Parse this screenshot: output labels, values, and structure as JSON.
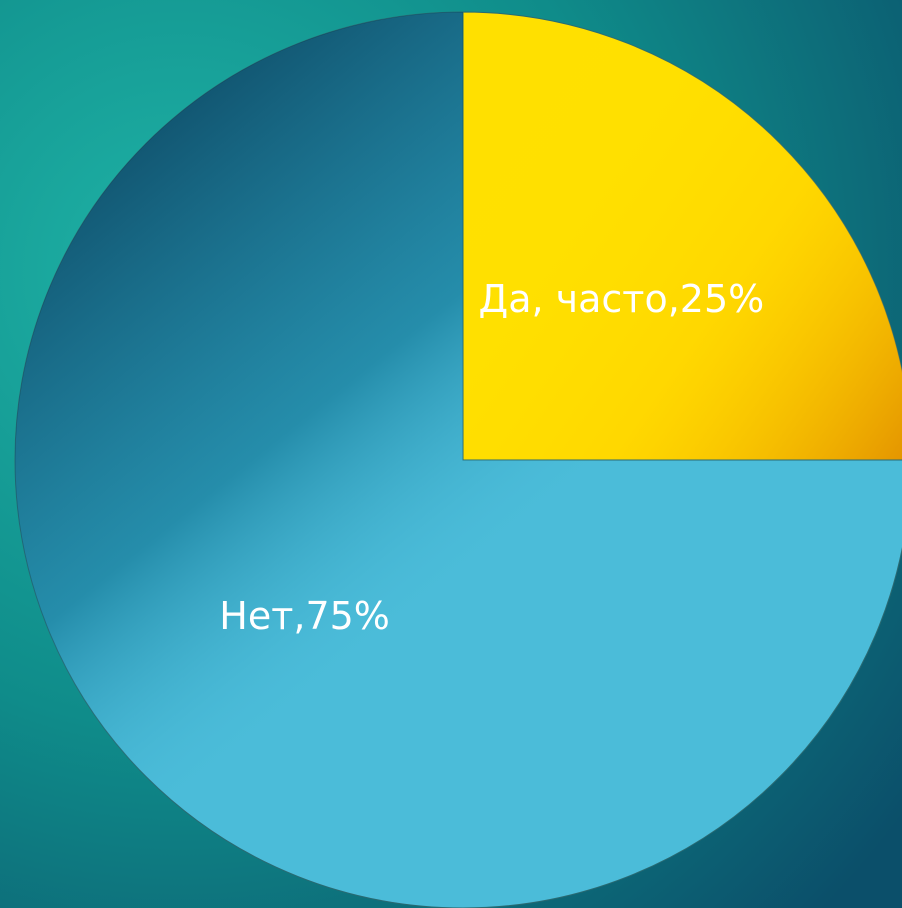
{
  "chart_data": {
    "type": "pie",
    "values": [
      25,
      75
    ],
    "value_labels": [
      "Да, часто,25%",
      "Нет,75%"
    ],
    "colors": [
      "#ffe000",
      "#4bbcd9"
    ]
  }
}
